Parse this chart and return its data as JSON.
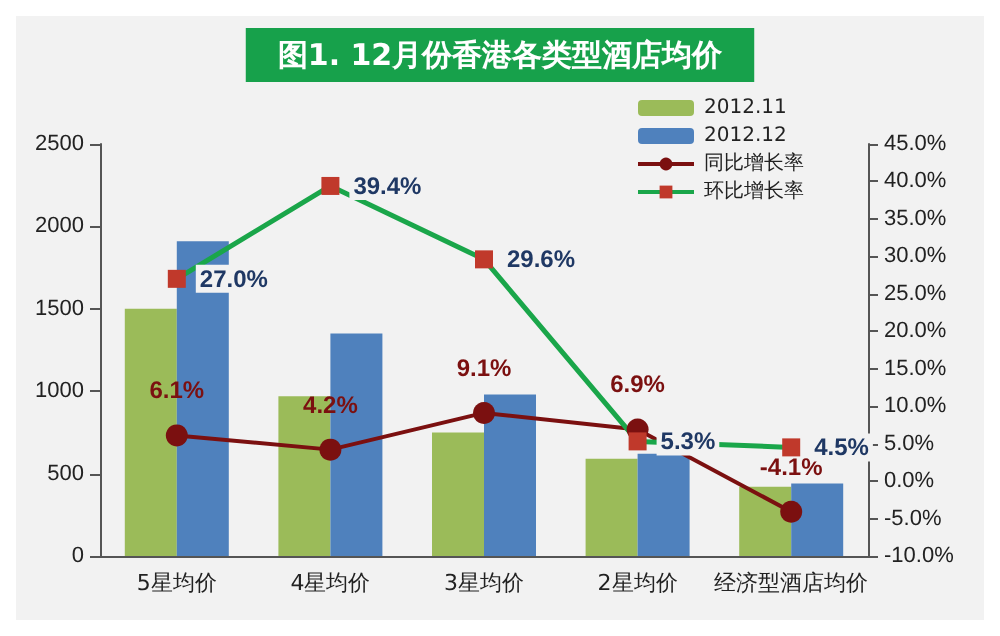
{
  "chart_data": {
    "type": "bar",
    "title": "图1. 12月份香港各类型酒店均价",
    "categories": [
      "5星均价",
      "4星均价",
      "3星均价",
      "2星均价",
      "经济型酒店均价"
    ],
    "series": [
      {
        "name": "2012.11",
        "color": "#9bbb59",
        "values": [
          1500,
          970,
          750,
          590,
          420
        ]
      },
      {
        "name": "2012.12",
        "color": "#4f81bd",
        "values": [
          1910,
          1350,
          980,
          620,
          440
        ]
      },
      {
        "name": "同比增长率",
        "type": "line",
        "axis": "y2",
        "marker": "circle",
        "color": "#7b1010",
        "values": [
          6.1,
          4.2,
          9.1,
          6.9,
          -4.1
        ],
        "value_labels": [
          "6.1%",
          "4.2%",
          "9.1%",
          "6.9%",
          "-4.1%"
        ]
      },
      {
        "name": "环比增长率",
        "type": "line",
        "axis": "y2",
        "marker": "square",
        "color": "#1aa64a",
        "values": [
          27.0,
          39.4,
          29.6,
          5.3,
          4.5
        ],
        "value_labels": [
          "27.0%",
          "39.4%",
          "29.6%",
          "5.3%",
          "4.5%"
        ]
      }
    ],
    "ylim": [
      0,
      2500
    ],
    "yticks": [
      0,
      500,
      1000,
      1500,
      2000,
      2500
    ],
    "y2lim": [
      -10,
      45
    ],
    "y2ticks": [
      {
        "value": -10,
        "label": "-10.0%"
      },
      {
        "value": -5,
        "label": "-5.0%"
      },
      {
        "value": 0,
        "label": "0.0%"
      },
      {
        "value": 5,
        "label": "5.0%"
      },
      {
        "value": 10,
        "label": "10.0%"
      },
      {
        "value": 15,
        "label": "15.0%"
      },
      {
        "value": 20,
        "label": "20.0%"
      },
      {
        "value": 25,
        "label": "25.0%"
      },
      {
        "value": 30,
        "label": "30.0%"
      },
      {
        "value": 35,
        "label": "35.0%"
      },
      {
        "value": 40,
        "label": "40.0%"
      },
      {
        "value": 45,
        "label": "45.0%"
      }
    ],
    "grid": false,
    "legend": "top right"
  }
}
